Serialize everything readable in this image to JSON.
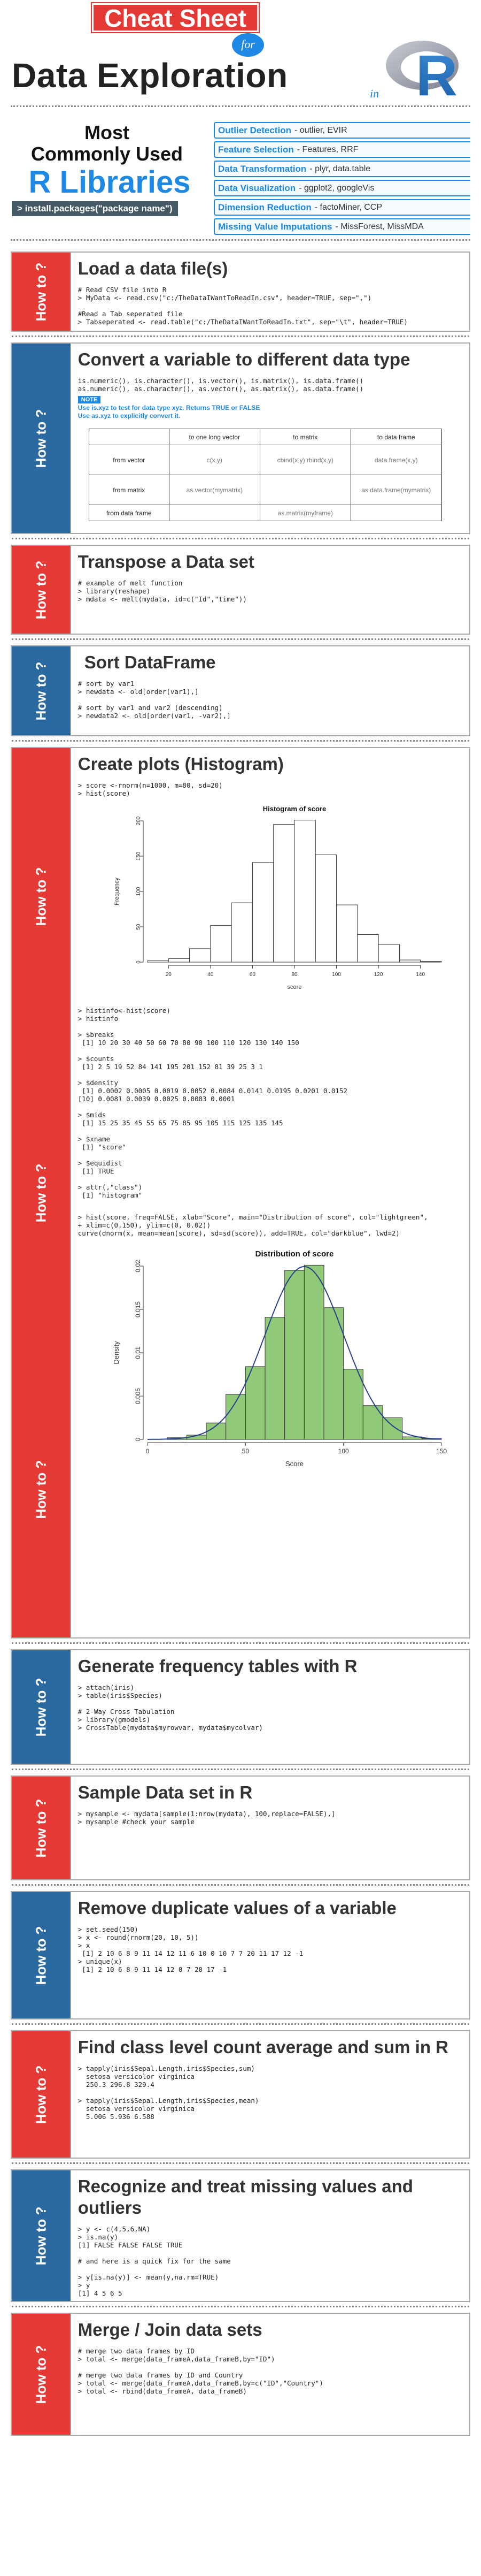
{
  "header": {
    "badge": "Cheat Sheet",
    "for_word": "for",
    "title": "Data Exploration",
    "in_word": "in",
    "logo_letter": "R"
  },
  "libraries": {
    "heading_line1": "Most",
    "heading_line2": "Commonly Used",
    "heading_line3": "R Libraries",
    "install": "> install.packages(\"package name\")",
    "rows": [
      {
        "key": "Outlier Detection",
        "value": " - outlier, EVIR"
      },
      {
        "key": "Feature Selection",
        "value": " - Features, RRF"
      },
      {
        "key": "Data Transformation",
        "value": " - plyr, data.table"
      },
      {
        "key": "Data Visualization",
        "value": " - ggplot2, googleVis"
      },
      {
        "key": "Dimension Reduction",
        "value": " - factoMiner, CCP"
      },
      {
        "key": "Missing Value Imputations",
        "value": " - MissForest, MissMDA"
      }
    ]
  },
  "how_to": "How to ?",
  "sections": {
    "load": {
      "title": "Load a data file(s)",
      "code": "# Read CSV file into R\n> MyData <- read.csv(\"c:/TheDataIWantToReadIn.csv\", header=TRUE, sep=\",\")\n\n#Read a Tab seperated file\n> Tabseperated <- read.table(\"c:/TheDataIWantToReadIn.txt\", sep=\"\\t\", header=TRUE)"
    },
    "convert": {
      "title": "Convert a variable to different data type",
      "code": "is.numeric(), is.character(), is.vector(), is.matrix(), is.data.frame()\nas.numeric(), as.character(), as.vector(), as.matrix(), as.data.frame()",
      "note_label": "NOTE",
      "note_line1": "Use is.xyz to test for data type xyz. Returns TRUE or FALSE",
      "note_line2": "Use as.xyz to explicitly convert it.",
      "table": {
        "headers": [
          "",
          "to one long vector",
          "to matrix",
          "to data frame"
        ],
        "rows": [
          [
            "from vector",
            "c(x,y)",
            "cbind(x,y) rbind(x,y)",
            "data.frame(x,y)"
          ],
          [
            "from matrix",
            "as.vector(mymatrix)",
            "",
            "as.data.frame(mymatrix)"
          ],
          [
            "from data frame",
            "",
            "as.matrix(myframe)",
            ""
          ]
        ]
      }
    },
    "transpose": {
      "title": "Transpose a Data set",
      "code": "# example of melt function\n> library(reshape)\n> mdata <- melt(mydata, id=c(\"Id\",\"time\"))"
    },
    "sort": {
      "title": "Sort DataFrame",
      "code": "# sort by var1\n> newdata <- old[order(var1),]\n\n# sort by var1 and var2 (descending)\n> newdata2 <- old[order(var1, -var2),]"
    },
    "plots": {
      "title": "Create plots (Histogram)",
      "code1": "> score <-rnorm(n=1000, m=80, sd=20)\n> hist(score)",
      "code2": "> histinfo<-hist(score)\n> histinfo\n\n> $breaks\n [1] 10 20 30 40 50 60 70 80 90 100 110 120 130 140 150\n\n> $counts\n [1] 2 5 19 52 84 141 195 201 152 81 39 25 3 1\n\n> $density\n [1] 0.0002 0.0005 0.0019 0.0052 0.0084 0.0141 0.0195 0.0201 0.0152\n[10] 0.0081 0.0039 0.0025 0.0003 0.0001\n\n> $mids\n [1] 15 25 35 45 55 65 75 85 95 105 115 125 135 145\n\n> $xname\n [1] \"score\"\n\n> $equidist\n [1] TRUE\n\n> attr(,\"class\")\n [1] \"histogram\"",
      "code3": "> hist(score, freq=FALSE, xlab=\"Score\", main=\"Distribution of score\", col=\"lightgreen\",\n+ xlim=c(0,150), ylim=c(0, 0.02))\ncurve(dnorm(x, mean=mean(score), sd=sd(score)), add=TRUE, col=\"darkblue\", lwd=2)"
    },
    "freq": {
      "title": "Generate frequency tables with R",
      "code": "> attach(iris)\n> table(iris$Species)\n\n# 2-Way Cross Tabulation\n> library(gmodels)\n> CrossTable(mydata$myrowvar, mydata$mycolvar)"
    },
    "sample": {
      "title": "Sample Data set in R",
      "code": "> mysample <- mydata[sample(1:nrow(mydata), 100,replace=FALSE),]\n> mysample #check your sample"
    },
    "dupes": {
      "title": "Remove duplicate values of a variable",
      "code": "> set.seed(150)\n> x <- round(rnorm(20, 10, 5))\n> x\n [1] 2 10 6 8 9 11 14 12 11 6 10 0 10 7 7 20 11 17 12 -1\n> unique(x)\n [1] 2 10 6 8 9 11 14 12 0 7 20 17 -1"
    },
    "agg": {
      "title": "Find class level count average and sum in R",
      "code": "> tapply(iris$Sepal.Length,iris$Species,sum)\n  setosa versicolor virginica\n  250.3 296.8 329.4\n\n> tapply(iris$Sepal.Length,iris$Species,mean)\n  setosa versicolor virginica\n  5.006 5.936 6.588"
    },
    "missing": {
      "title": "Recognize and treat missing values and outliers",
      "code": "> y <- c(4,5,6,NA)\n> is.na(y)\n[1] FALSE FALSE FALSE TRUE\n\n# and here is a quick fix for the same\n\n> y[is.na(y)] <- mean(y,na.rm=TRUE)\n> y\n[1] 4 5 6 5"
    },
    "merge": {
      "title": "Merge / Join data sets",
      "code": "# merge two data frames by ID\n> total <- merge(data_frameA,data_frameB,by=\"ID\")\n\n# merge two data frames by ID and Country\n> total <- merge(data_frameA,data_frameB,by=c(\"ID\",\"Country\")\n> total <- rbind(data_frameA, data_frameB)"
    }
  },
  "chart_data": [
    {
      "type": "bar",
      "title": "Histogram of score",
      "xlabel": "score",
      "ylabel": "Frequency",
      "breaks": [
        10,
        20,
        30,
        40,
        50,
        60,
        70,
        80,
        90,
        100,
        110,
        120,
        130,
        140,
        150
      ],
      "values": [
        2,
        5,
        19,
        52,
        84,
        141,
        195,
        201,
        152,
        81,
        39,
        25,
        3,
        1
      ],
      "xticks": [
        20,
        40,
        60,
        80,
        100,
        120,
        140
      ],
      "yticks": [
        0,
        50,
        100,
        150,
        200
      ],
      "ylim": [
        0,
        200
      ],
      "color": "#ffffff"
    },
    {
      "type": "bar",
      "title": "Distribution of score",
      "xlabel": "Score",
      "ylabel": "Density",
      "breaks": [
        10,
        20,
        30,
        40,
        50,
        60,
        70,
        80,
        90,
        100,
        110,
        120,
        130,
        140,
        150
      ],
      "values": [
        0.0002,
        0.0005,
        0.0019,
        0.0052,
        0.0084,
        0.0141,
        0.0195,
        0.0201,
        0.0152,
        0.0081,
        0.0039,
        0.0025,
        0.0003,
        0.0001
      ],
      "xticks": [
        0,
        50,
        100,
        150
      ],
      "yticks": [
        0.0,
        0.005,
        0.01,
        0.015,
        0.02
      ],
      "xlim": [
        0,
        150
      ],
      "ylim": [
        0,
        0.02
      ],
      "curve": {
        "mean": 80,
        "sd": 20
      },
      "color": "#90c978",
      "curve_color": "#27408b"
    }
  ]
}
